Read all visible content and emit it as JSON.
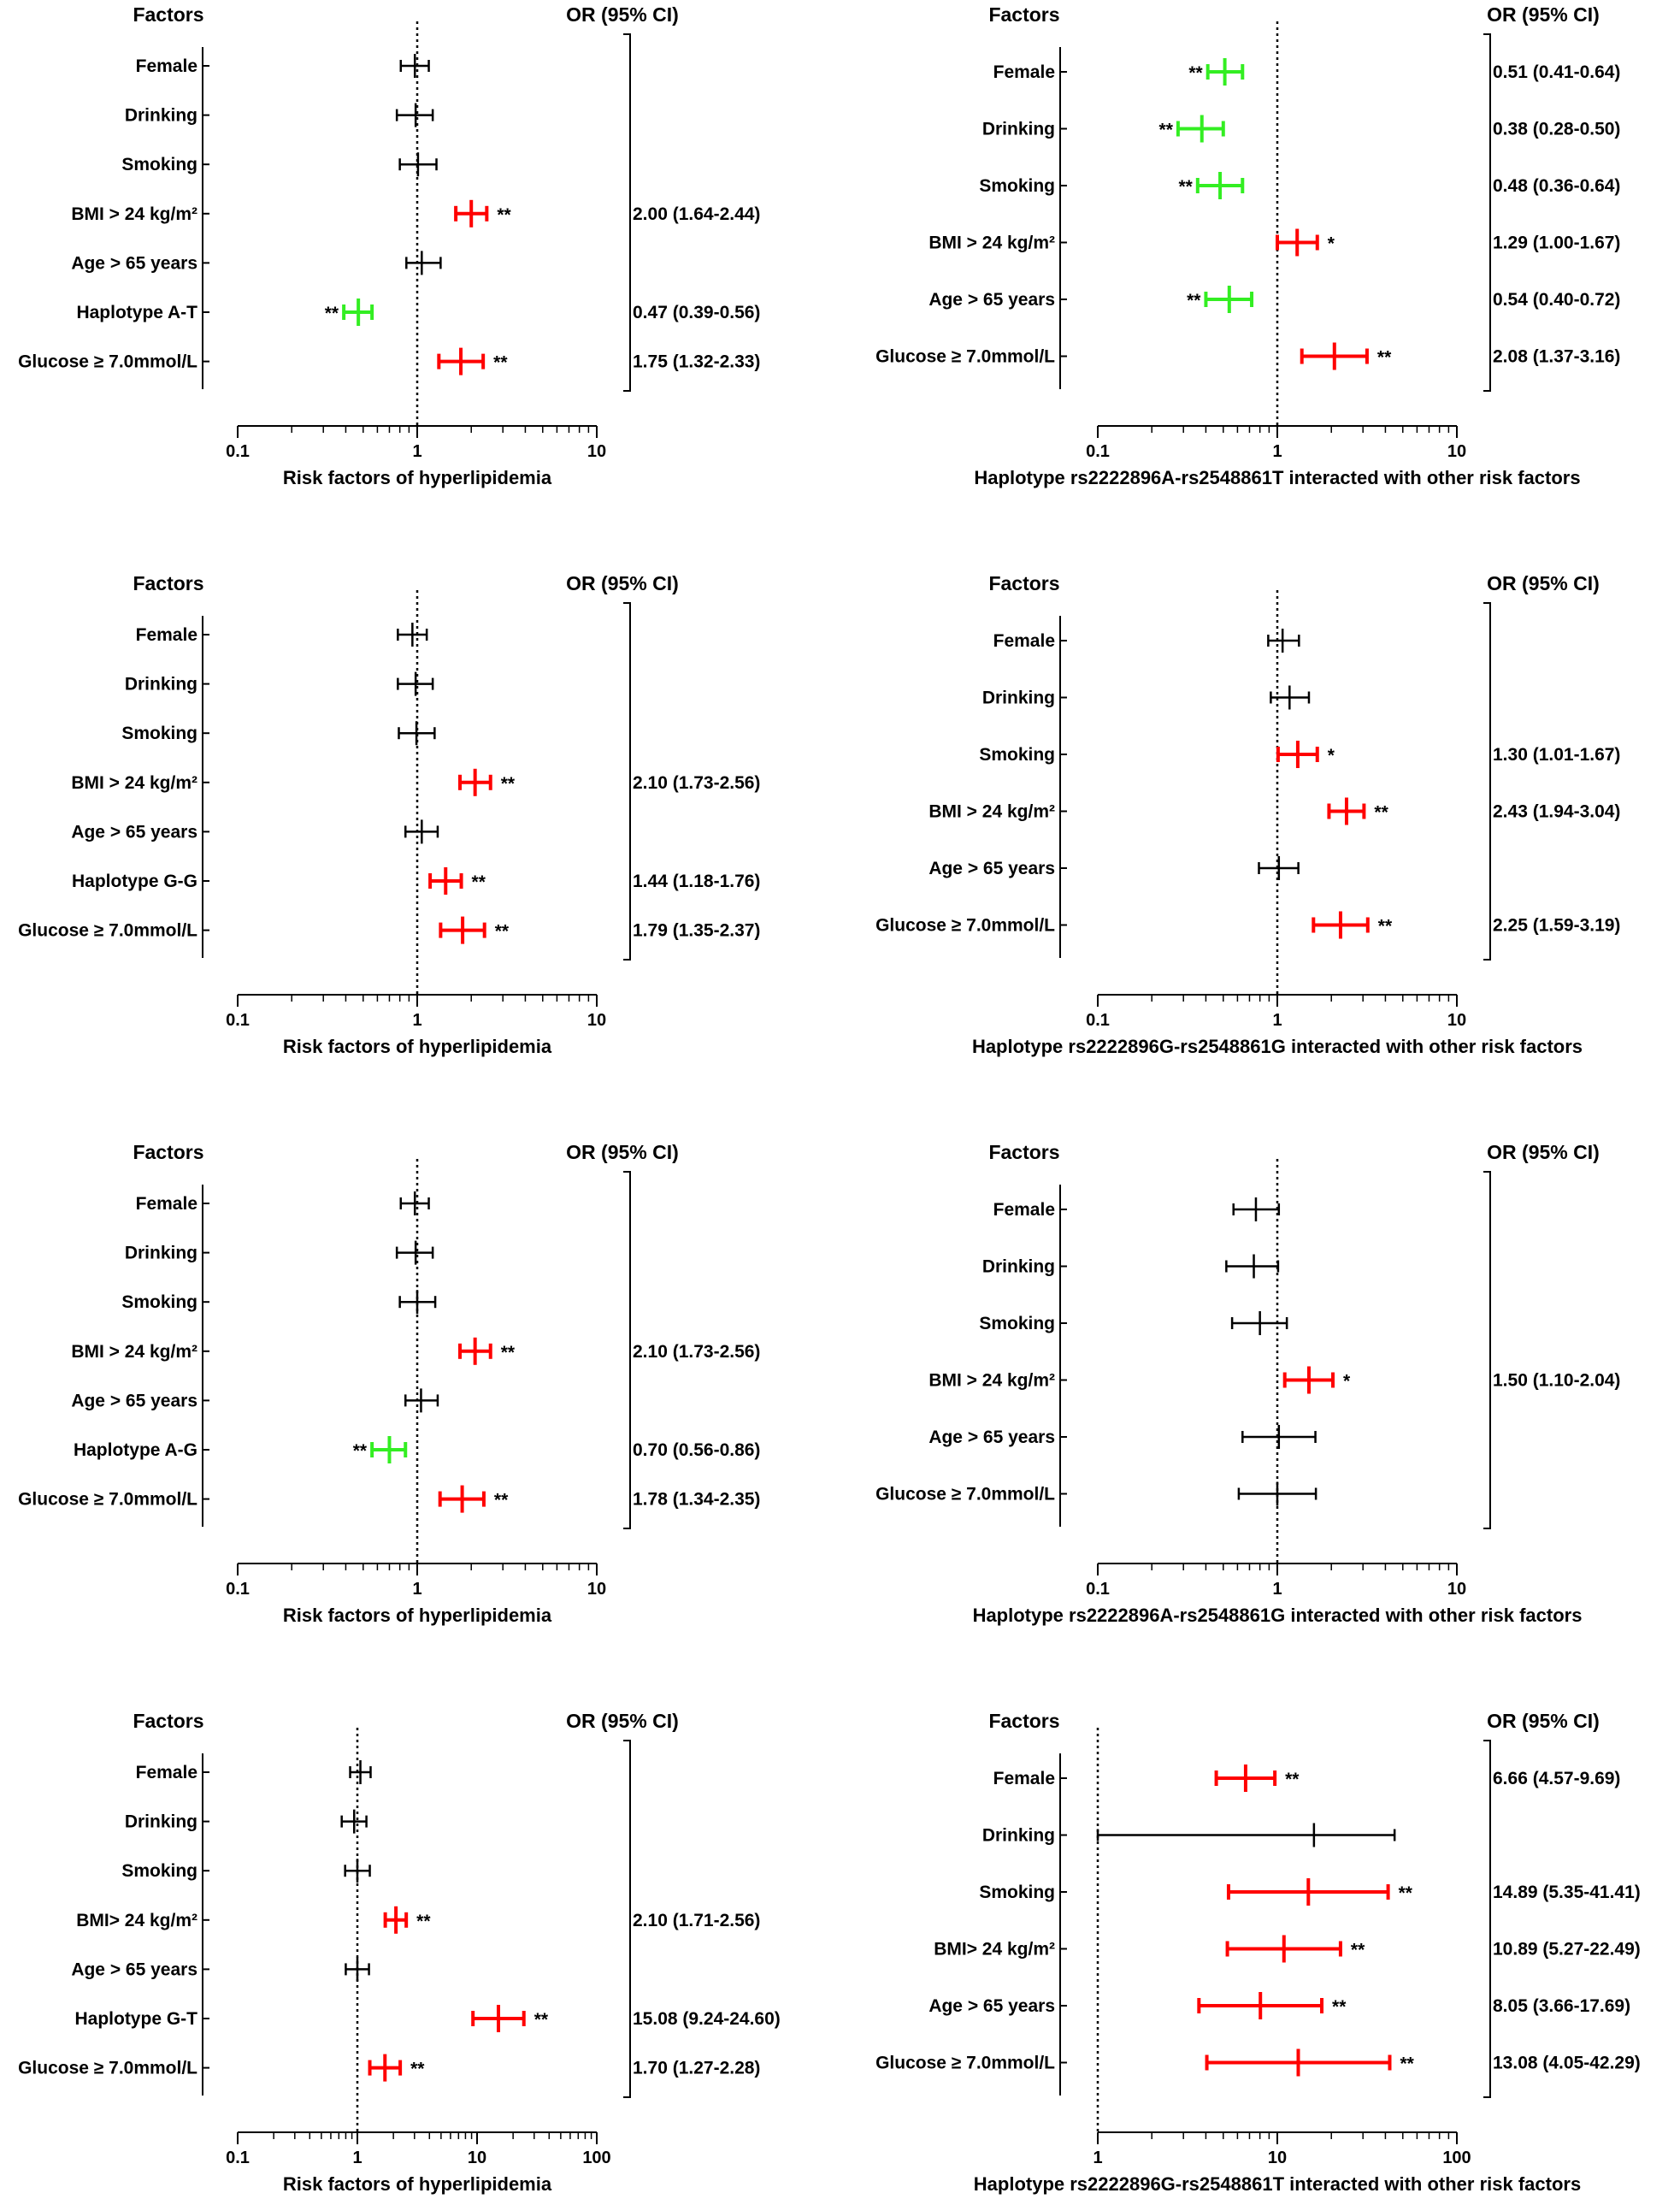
{
  "colors": {
    "significant_risk": "#ff0000",
    "significant_protective": "#33ee22",
    "not_significant": "#000000"
  },
  "chart_data": [
    {
      "type": "forest",
      "header_left": "Factors",
      "header_right": "OR (95% CI)",
      "xlabel": "Risk factors of hyperlipidemia",
      "xscale": "log",
      "xlim": [
        0.1,
        10
      ],
      "xticks": [
        "0.1",
        "1",
        "10"
      ],
      "reference_line": 1,
      "rows": [
        {
          "label": "Female",
          "or": 0.97,
          "low": 0.81,
          "high": 1.16,
          "color": "black",
          "sig": "",
          "or_text": ""
        },
        {
          "label": "Drinking",
          "or": 0.98,
          "low": 0.77,
          "high": 1.22,
          "color": "black",
          "sig": "",
          "or_text": ""
        },
        {
          "label": "Smoking",
          "or": 1.01,
          "low": 0.8,
          "high": 1.28,
          "color": "black",
          "sig": "",
          "or_text": ""
        },
        {
          "label": "BMI > 24 kg/m²",
          "or": 2.0,
          "low": 1.64,
          "high": 2.44,
          "color": "red",
          "sig": "**",
          "or_text": "2.00 (1.64-2.44)"
        },
        {
          "label": "Age > 65 years",
          "or": 1.06,
          "low": 0.87,
          "high": 1.35,
          "color": "black",
          "sig": "",
          "or_text": ""
        },
        {
          "label": "Haplotype A-T",
          "or": 0.47,
          "low": 0.39,
          "high": 0.56,
          "color": "green",
          "sig": "**",
          "or_text": "0.47 (0.39-0.56)"
        },
        {
          "label": "Glucose ≥ 7.0mmol/L",
          "or": 1.75,
          "low": 1.32,
          "high": 2.33,
          "color": "red",
          "sig": "**",
          "or_text": "1.75 (1.32-2.33)"
        }
      ]
    },
    {
      "type": "forest",
      "header_left": "Factors",
      "header_right": "OR (95% CI)",
      "xlabel": "Haplotype rs2222896A-rs2548861T interacted with other risk factors",
      "xscale": "log",
      "xlim": [
        0.1,
        10
      ],
      "xticks": [
        "0.1",
        "1",
        "10"
      ],
      "reference_line": 1,
      "rows": [
        {
          "label": "Female",
          "or": 0.51,
          "low": 0.41,
          "high": 0.64,
          "color": "green",
          "sig": "**",
          "or_text": "0.51 (0.41-0.64)"
        },
        {
          "label": "Drinking",
          "or": 0.38,
          "low": 0.28,
          "high": 0.5,
          "color": "green",
          "sig": "**",
          "or_text": "0.38 (0.28-0.50)"
        },
        {
          "label": "Smoking",
          "or": 0.48,
          "low": 0.36,
          "high": 0.64,
          "color": "green",
          "sig": "**",
          "or_text": "0.48 (0.36-0.64)"
        },
        {
          "label": "BMI > 24 kg/m²",
          "or": 1.29,
          "low": 1.0,
          "high": 1.67,
          "color": "red",
          "sig": "*",
          "or_text": "1.29 (1.00-1.67)"
        },
        {
          "label": "Age > 65 years",
          "or": 0.54,
          "low": 0.4,
          "high": 0.72,
          "color": "green",
          "sig": "**",
          "or_text": "0.54 (0.40-0.72)"
        },
        {
          "label": "Glucose ≥ 7.0mmol/L",
          "or": 2.08,
          "low": 1.37,
          "high": 3.16,
          "color": "red",
          "sig": "**",
          "or_text": "2.08 (1.37-3.16)"
        }
      ]
    },
    {
      "type": "forest",
      "header_left": "Factors",
      "header_right": "OR (95% CI)",
      "xlabel": "Risk factors of hyperlipidemia",
      "xscale": "log",
      "xlim": [
        0.1,
        10
      ],
      "xticks": [
        "0.1",
        "1",
        "10"
      ],
      "reference_line": 1,
      "rows": [
        {
          "label": "Female",
          "or": 0.94,
          "low": 0.78,
          "high": 1.13,
          "color": "black",
          "sig": "",
          "or_text": ""
        },
        {
          "label": "Drinking",
          "or": 0.98,
          "low": 0.78,
          "high": 1.22,
          "color": "black",
          "sig": "",
          "or_text": ""
        },
        {
          "label": "Smoking",
          "or": 0.99,
          "low": 0.79,
          "high": 1.25,
          "color": "black",
          "sig": "",
          "or_text": ""
        },
        {
          "label": "BMI > 24 kg/m²",
          "or": 2.1,
          "low": 1.73,
          "high": 2.56,
          "color": "red",
          "sig": "**",
          "or_text": "2.10 (1.73-2.56)"
        },
        {
          "label": "Age > 65 years",
          "or": 1.06,
          "low": 0.86,
          "high": 1.3,
          "color": "black",
          "sig": "",
          "or_text": ""
        },
        {
          "label": "Haplotype G-G",
          "or": 1.44,
          "low": 1.18,
          "high": 1.76,
          "color": "red",
          "sig": "**",
          "or_text": "1.44 (1.18-1.76)"
        },
        {
          "label": "Glucose ≥ 7.0mmol/L",
          "or": 1.79,
          "low": 1.35,
          "high": 2.37,
          "color": "red",
          "sig": "**",
          "or_text": "1.79 (1.35-2.37)"
        }
      ]
    },
    {
      "type": "forest",
      "header_left": "Factors",
      "header_right": "OR (95% CI)",
      "xlabel": "Haplotype rs2222896G-rs2548861G interacted with other risk factors",
      "xscale": "log",
      "xlim": [
        0.1,
        10
      ],
      "xticks": [
        "0.1",
        "1",
        "10"
      ],
      "reference_line": 1,
      "rows": [
        {
          "label": "Female",
          "or": 1.07,
          "low": 0.89,
          "high": 1.32,
          "color": "black",
          "sig": "",
          "or_text": ""
        },
        {
          "label": "Drinking",
          "or": 1.17,
          "low": 0.92,
          "high": 1.5,
          "color": "black",
          "sig": "",
          "or_text": ""
        },
        {
          "label": "Smoking",
          "or": 1.3,
          "low": 1.01,
          "high": 1.67,
          "color": "red",
          "sig": "*",
          "or_text": "1.30 (1.01-1.67)"
        },
        {
          "label": "BMI > 24 kg/m²",
          "or": 2.43,
          "low": 1.94,
          "high": 3.04,
          "color": "red",
          "sig": "**",
          "or_text": "2.43 (1.94-3.04)"
        },
        {
          "label": "Age > 65 years",
          "or": 1.02,
          "low": 0.79,
          "high": 1.31,
          "color": "black",
          "sig": "",
          "or_text": ""
        },
        {
          "label": "Glucose ≥ 7.0mmol/L",
          "or": 2.25,
          "low": 1.59,
          "high": 3.19,
          "color": "red",
          "sig": "**",
          "or_text": "2.25 (1.59-3.19)"
        }
      ]
    },
    {
      "type": "forest",
      "header_left": "Factors",
      "header_right": "OR (95% CI)",
      "xlabel": "Risk factors of hyperlipidemia",
      "xscale": "log",
      "xlim": [
        0.1,
        10
      ],
      "xticks": [
        "0.1",
        "1",
        "10"
      ],
      "reference_line": 1,
      "rows": [
        {
          "label": "Female",
          "or": 0.97,
          "low": 0.81,
          "high": 1.16,
          "color": "black",
          "sig": "",
          "or_text": ""
        },
        {
          "label": "Drinking",
          "or": 0.98,
          "low": 0.77,
          "high": 1.22,
          "color": "black",
          "sig": "",
          "or_text": ""
        },
        {
          "label": "Smoking",
          "or": 1.0,
          "low": 0.8,
          "high": 1.26,
          "color": "black",
          "sig": "",
          "or_text": ""
        },
        {
          "label": "BMI > 24 kg/m²",
          "or": 2.1,
          "low": 1.73,
          "high": 2.56,
          "color": "red",
          "sig": "**",
          "or_text": "2.10 (1.73-2.56)"
        },
        {
          "label": "Age > 65 years",
          "or": 1.05,
          "low": 0.86,
          "high": 1.3,
          "color": "black",
          "sig": "",
          "or_text": ""
        },
        {
          "label": "Haplotype A-G",
          "or": 0.7,
          "low": 0.56,
          "high": 0.86,
          "color": "green",
          "sig": "**",
          "or_text": "0.70 (0.56-0.86)"
        },
        {
          "label": "Glucose ≥ 7.0mmol/L",
          "or": 1.78,
          "low": 1.34,
          "high": 2.35,
          "color": "red",
          "sig": "**",
          "or_text": "1.78 (1.34-2.35)"
        }
      ]
    },
    {
      "type": "forest",
      "header_left": "Factors",
      "header_right": "OR (95% CI)",
      "xlabel": "Haplotype rs2222896A-rs2548861G interacted with other risk factors",
      "xscale": "log",
      "xlim": [
        0.1,
        10
      ],
      "xticks": [
        "0.1",
        "1",
        "10"
      ],
      "reference_line": 1,
      "rows": [
        {
          "label": "Female",
          "or": 0.76,
          "low": 0.57,
          "high": 1.02,
          "color": "black",
          "sig": "",
          "or_text": ""
        },
        {
          "label": "Drinking",
          "or": 0.74,
          "low": 0.52,
          "high": 1.01,
          "color": "black",
          "sig": "",
          "or_text": ""
        },
        {
          "label": "Smoking",
          "or": 0.8,
          "low": 0.56,
          "high": 1.13,
          "color": "black",
          "sig": "",
          "or_text": ""
        },
        {
          "label": "BMI > 24 kg/m²",
          "or": 1.5,
          "low": 1.1,
          "high": 2.04,
          "color": "red",
          "sig": "*",
          "or_text": "1.50 (1.10-2.04)"
        },
        {
          "label": "Age > 65 years",
          "or": 1.02,
          "low": 0.64,
          "high": 1.63,
          "color": "black",
          "sig": "",
          "or_text": ""
        },
        {
          "label": "Glucose ≥ 7.0mmol/L",
          "or": 1.0,
          "low": 0.61,
          "high": 1.64,
          "color": "black",
          "sig": "",
          "or_text": ""
        }
      ]
    },
    {
      "type": "forest",
      "header_left": "Factors",
      "header_right": "OR (95% CI)",
      "xlabel": "Risk factors of hyperlipidemia",
      "xscale": "log",
      "xlim": [
        0.1,
        100
      ],
      "xticks": [
        "0.1",
        "1",
        "10",
        "100"
      ],
      "reference_line": 1,
      "rows": [
        {
          "label": "Female",
          "or": 1.06,
          "low": 0.87,
          "high": 1.29,
          "color": "black",
          "sig": "",
          "or_text": ""
        },
        {
          "label": "Drinking",
          "or": 0.94,
          "low": 0.74,
          "high": 1.19,
          "color": "black",
          "sig": "",
          "or_text": ""
        },
        {
          "label": "Smoking",
          "or": 1.0,
          "low": 0.79,
          "high": 1.27,
          "color": "black",
          "sig": "",
          "or_text": ""
        },
        {
          "label": "BMI> 24 kg/m²",
          "or": 2.1,
          "low": 1.71,
          "high": 2.56,
          "color": "red",
          "sig": "**",
          "or_text": "2.10 (1.71-2.56)"
        },
        {
          "label": "Age > 65 years",
          "or": 1.0,
          "low": 0.8,
          "high": 1.25,
          "color": "black",
          "sig": "",
          "or_text": ""
        },
        {
          "label": "Haplotype G-T",
          "or": 15.08,
          "low": 9.24,
          "high": 24.6,
          "color": "red",
          "sig": "**",
          "or_text": "15.08 (9.24-24.60)"
        },
        {
          "label": "Glucose ≥ 7.0mmol/L",
          "or": 1.7,
          "low": 1.27,
          "high": 2.28,
          "color": "red",
          "sig": "**",
          "or_text": "1.70 (1.27-2.28)"
        }
      ]
    },
    {
      "type": "forest",
      "header_left": "Factors",
      "header_right": "OR (95% CI)",
      "xlabel": "Haplotype rs2222896G-rs2548861T interacted with other risk factors",
      "xscale": "log",
      "xlim": [
        1,
        100
      ],
      "xticks": [
        "1",
        "10",
        "100"
      ],
      "reference_line": 1,
      "rows": [
        {
          "label": "Female",
          "or": 6.66,
          "low": 4.57,
          "high": 9.69,
          "color": "red",
          "sig": "**",
          "or_text": "6.66 (4.57-9.69)"
        },
        {
          "label": "Drinking",
          "or": 16.0,
          "low": 1.0,
          "high": 45.0,
          "color": "black",
          "sig": "",
          "or_text": ""
        },
        {
          "label": "Smoking",
          "or": 14.89,
          "low": 5.35,
          "high": 41.41,
          "color": "red",
          "sig": "**",
          "or_text": "14.89 (5.35-41.41)"
        },
        {
          "label": "BMI> 24 kg/m²",
          "or": 10.89,
          "low": 5.27,
          "high": 22.49,
          "color": "red",
          "sig": "**",
          "or_text": "10.89 (5.27-22.49)"
        },
        {
          "label": "Age > 65 years",
          "or": 8.05,
          "low": 3.66,
          "high": 17.69,
          "color": "red",
          "sig": "**",
          "or_text": "8.05 (3.66-17.69)"
        },
        {
          "label": "Glucose ≥ 7.0mmol/L",
          "or": 13.08,
          "low": 4.05,
          "high": 42.29,
          "color": "red",
          "sig": "**",
          "or_text": "13.08 (4.05-42.29)"
        }
      ]
    }
  ]
}
